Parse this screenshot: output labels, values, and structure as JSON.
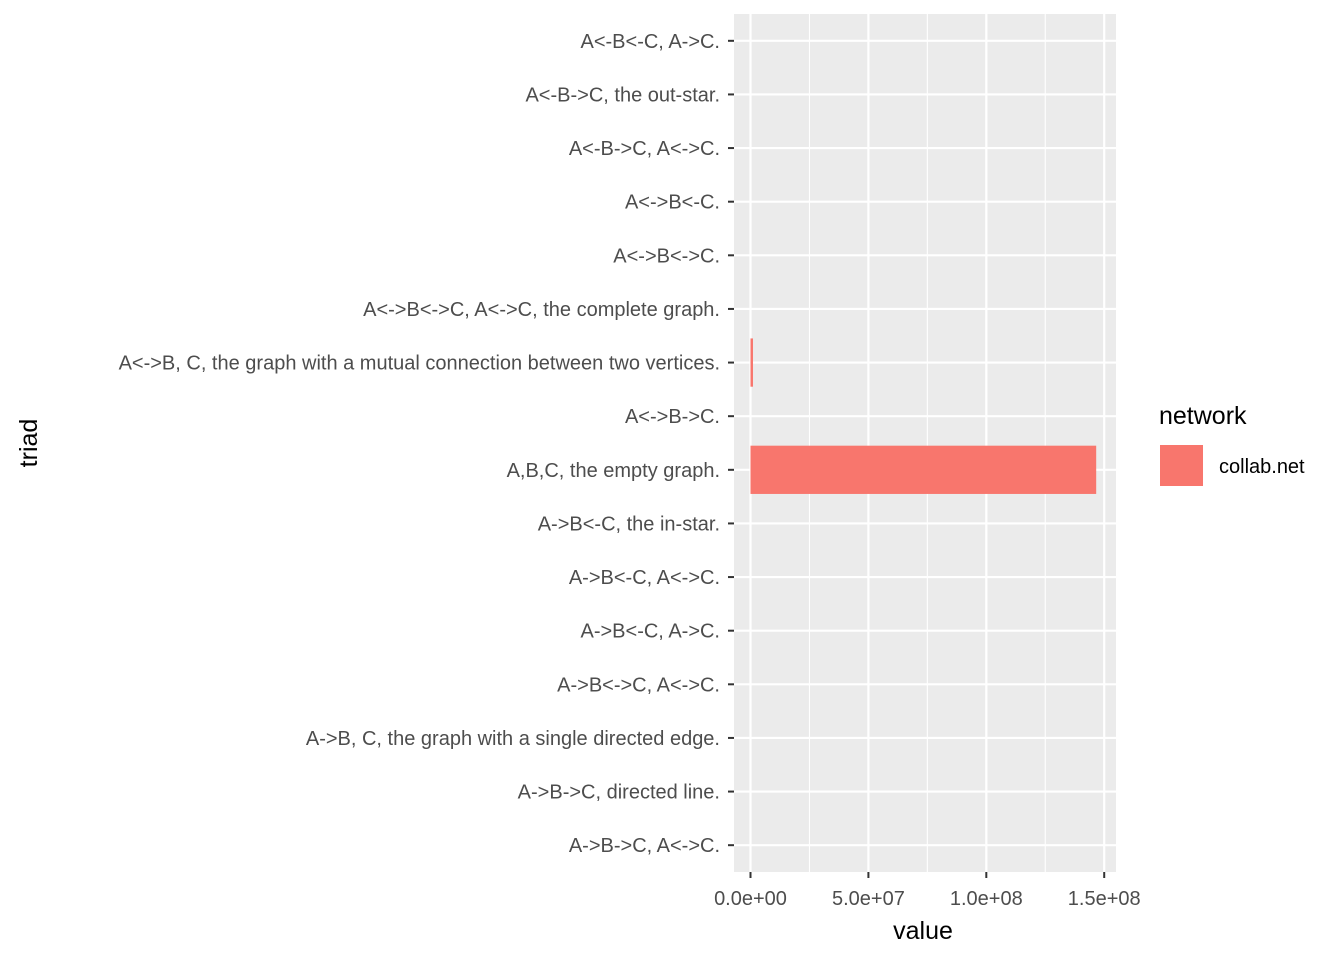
{
  "chart_data": {
    "type": "bar",
    "orientation": "horizontal",
    "xlabel": "value",
    "ylabel": "triad",
    "xlim": [
      -7000000,
      155000000
    ],
    "x_ticks": [
      0,
      50000000,
      100000000,
      150000000
    ],
    "x_tick_labels": [
      "0.0e+00",
      "5.0e+07",
      "1.0e+08",
      "1.5e+08"
    ],
    "grid": true,
    "categories": [
      "A<-B<-C, A->C.",
      "A<-B->C, the out-star.",
      "A<-B->C, A<->C.",
      "A<->B<-C.",
      "A<->B<->C.",
      "A<->B<->C, A<->C, the complete graph.",
      "A<->B, C, the graph with a mutual connection between two vertices.",
      "A<->B->C.",
      "A,B,C, the empty graph.",
      "A->B<-C, the in-star.",
      "A->B<-C, A<->C.",
      "A->B<-C, A->C.",
      "A->B<->C, A<->C.",
      "A->B, C, the graph with a single directed edge.",
      "A->B->C, directed line.",
      "A->B->C, A<->C."
    ],
    "series": [
      {
        "name": "collab.net",
        "color": "#F8766D",
        "values": [
          0,
          0,
          0,
          0,
          0,
          0,
          1050000,
          0,
          146600000,
          0,
          0,
          0,
          0,
          0,
          0,
          0
        ]
      }
    ],
    "legend": {
      "title": "network",
      "placement": "right",
      "entries": [
        "collab.net"
      ]
    },
    "panel_background": "#EBEBEB",
    "grid_color": "#FFFFFF"
  }
}
